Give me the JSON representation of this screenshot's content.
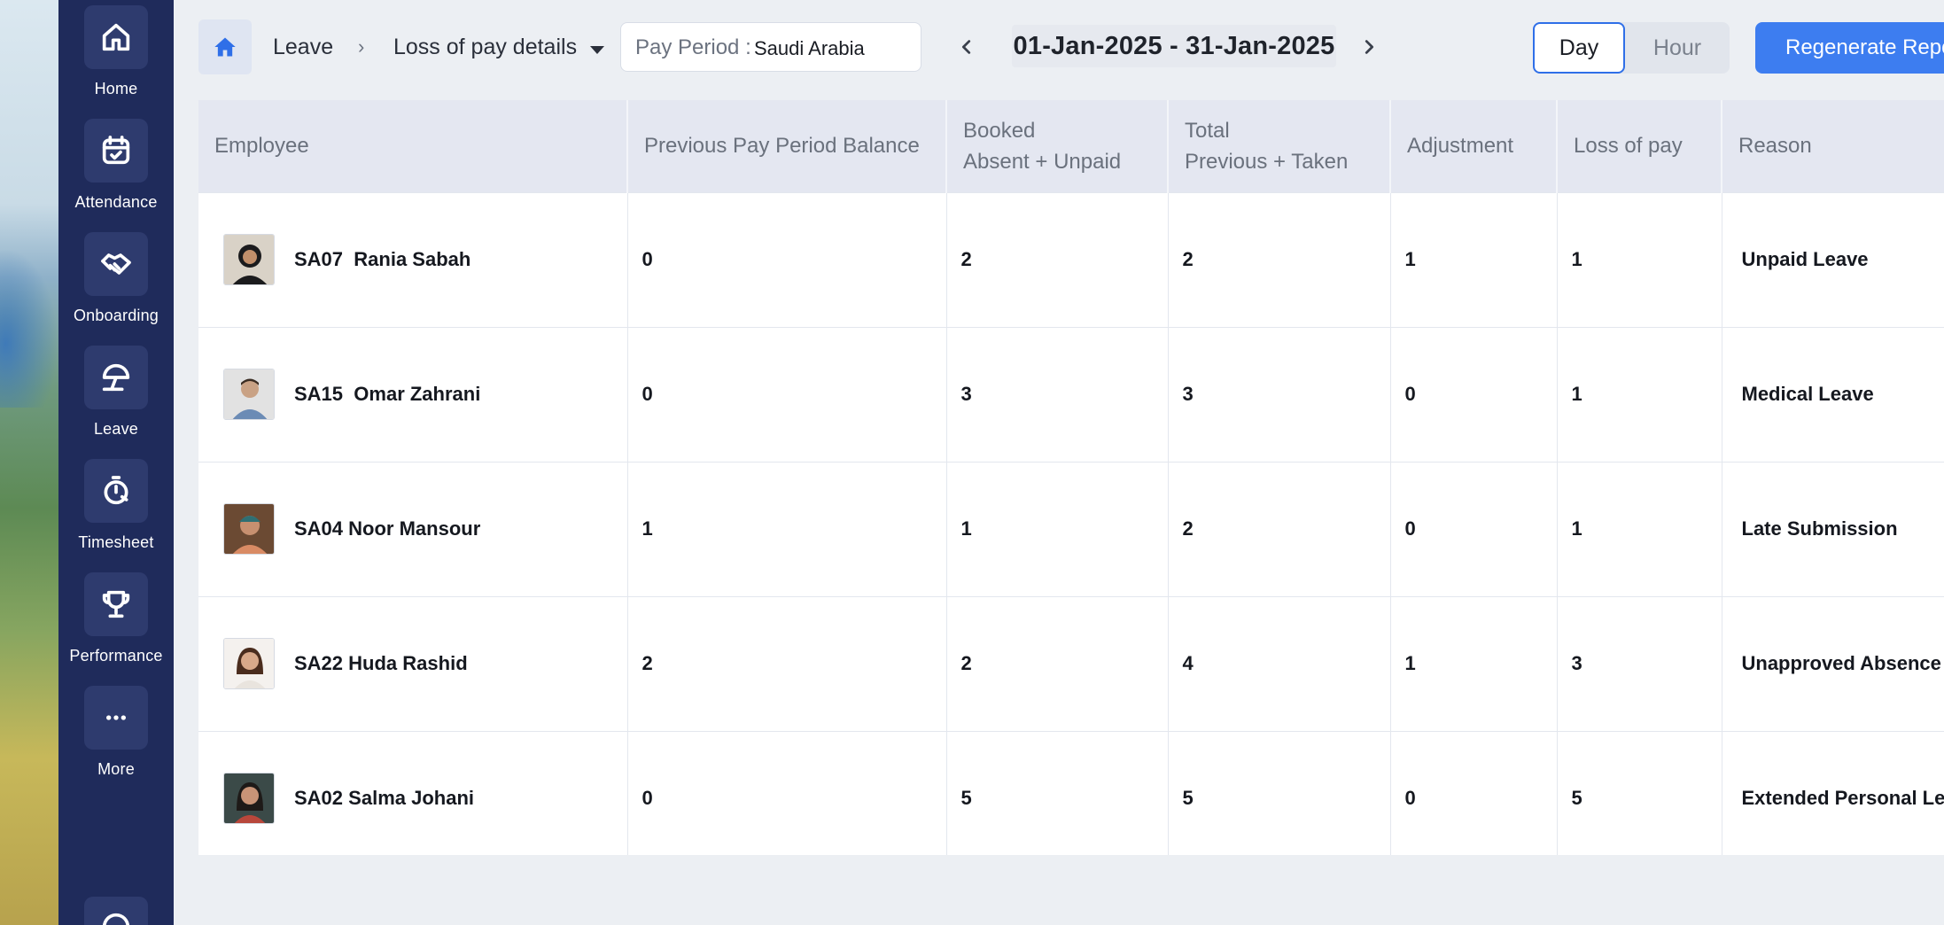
{
  "sidebar": {
    "items": [
      {
        "label": "Home",
        "icon": "home-icon"
      },
      {
        "label": "Attendance",
        "icon": "calendar-check-icon"
      },
      {
        "label": "Onboarding",
        "icon": "handshake-icon"
      },
      {
        "label": "Leave",
        "icon": "beach-umbrella-icon"
      },
      {
        "label": "Timesheet",
        "icon": "stopwatch-icon"
      },
      {
        "label": "Performance",
        "icon": "trophy-icon"
      },
      {
        "label": "More",
        "icon": "more-dots-icon"
      }
    ]
  },
  "header": {
    "breadcrumb_leave": "Leave",
    "breadcrumb_current": "Loss of pay details",
    "pay_period_label": "Pay Period :",
    "pay_period_value": "Saudi Arabia",
    "date_range": "01-Jan-2025 - 31-Jan-2025",
    "toggle_day": "Day",
    "toggle_hour": "Hour",
    "regenerate_label": "Regenerate Report"
  },
  "table": {
    "headers": {
      "employee": "Employee",
      "previous": "Previous Pay Period Balance",
      "booked_1": "Booked",
      "booked_2": "Absent + Unpaid",
      "total_1": "Total",
      "total_2": "Previous + Taken",
      "adjustment": "Adjustment",
      "lop": "Loss of pay",
      "reason": "Reason"
    },
    "rows": [
      {
        "id": "SA07",
        "name": "Rania Sabah",
        "previous": "0",
        "booked": "2",
        "total": "2",
        "adjustment": "1",
        "lop": "1",
        "reason": "Unpaid Leave"
      },
      {
        "id": "SA15",
        "name": "Omar Zahrani",
        "previous": "0",
        "booked": "3",
        "total": "3",
        "adjustment": "0",
        "lop": "1",
        "reason": "Medical Leave"
      },
      {
        "id": "SA04",
        "name": "Noor Mansour",
        "previous": "1",
        "booked": "1",
        "total": "2",
        "adjustment": "0",
        "lop": "1",
        "reason": "Late Submission"
      },
      {
        "id": "SA22",
        "name": "Huda Rashid",
        "previous": "2",
        "booked": "2",
        "total": "4",
        "adjustment": "1",
        "lop": "3",
        "reason": "Unapproved Absence"
      },
      {
        "id": "SA02",
        "name": "Salma Johani",
        "previous": "0",
        "booked": "5",
        "total": "5",
        "adjustment": "0",
        "lop": "5",
        "reason": "Extended Personal Leave"
      }
    ]
  },
  "colors": {
    "sidebar_bg": "#1f2b5b",
    "accent": "#3d7df0",
    "header_row_bg": "#e4e7f1"
  }
}
